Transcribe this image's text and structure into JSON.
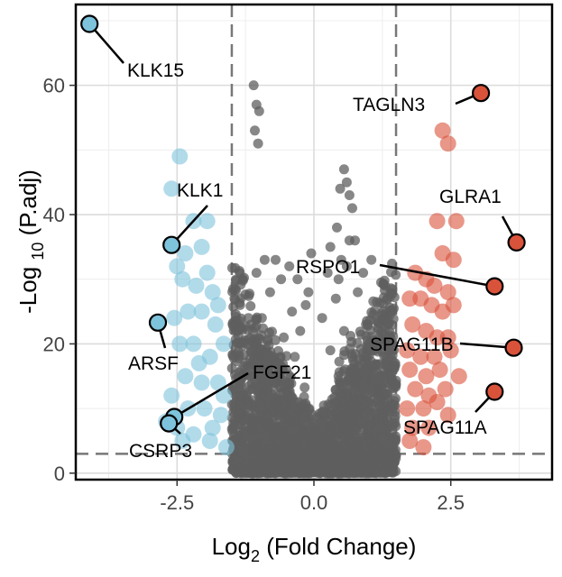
{
  "chart_data": {
    "type": "scatter",
    "xlabel": "Log2 (Fold Change)",
    "xlabel_parts": {
      "main": "Log",
      "sub": "2",
      "rest": " (Fold Change)"
    },
    "ylabel": "-Log 10 (P.adj)",
    "ylabel_parts": {
      "main": "-Log ",
      "sub": "10",
      "rest": " (P.adj)"
    },
    "xlim": [
      -4.35,
      4.35
    ],
    "ylim": [
      -1.0,
      72.5
    ],
    "xticks": [
      -2.5,
      0.0,
      2.5
    ],
    "xtick_labels": [
      "-2.5",
      "0.0",
      "2.5"
    ],
    "yticks": [
      0,
      20,
      40,
      60
    ],
    "ytick_labels": [
      "0",
      "20",
      "40",
      "60"
    ],
    "grid": true,
    "thresholds": {
      "log2fc": [
        -1.5,
        1.5
      ],
      "neg_log10_padj": 3
    },
    "colors": {
      "not_significant": "#5f5f5f",
      "down": "#7ec3dc",
      "up": "#d9523a",
      "threshold_line": "#777777"
    },
    "series": [
      {
        "type": "ns",
        "points": [
          [
            -0.9,
            2
          ],
          [
            -0.75,
            4
          ],
          [
            -0.6,
            1
          ],
          [
            -0.45,
            6
          ],
          [
            -0.3,
            3
          ],
          [
            -0.2,
            9
          ],
          [
            -0.1,
            1
          ],
          [
            0.0,
            0.5
          ],
          [
            0.1,
            2
          ],
          [
            0.2,
            5
          ],
          [
            0.35,
            3
          ],
          [
            0.5,
            8
          ],
          [
            0.65,
            2
          ],
          [
            0.8,
            4
          ],
          [
            0.95,
            1
          ],
          [
            1.1,
            3
          ],
          [
            -1.1,
            5
          ],
          [
            -1.25,
            2
          ],
          [
            1.25,
            6
          ],
          [
            1.4,
            2
          ],
          [
            -0.7,
            11
          ],
          [
            -0.5,
            14
          ],
          [
            -0.35,
            18
          ],
          [
            -0.25,
            22
          ],
          [
            -0.15,
            26
          ],
          [
            0.15,
            24
          ],
          [
            0.3,
            19
          ],
          [
            0.45,
            15
          ],
          [
            0.6,
            12
          ],
          [
            0.75,
            10
          ],
          [
            -1.0,
            9
          ],
          [
            -0.85,
            13
          ],
          [
            -0.65,
            17
          ],
          [
            -0.55,
            21
          ],
          [
            -0.4,
            25
          ],
          [
            0.4,
            27
          ],
          [
            0.55,
            22
          ],
          [
            0.7,
            18
          ],
          [
            0.85,
            14
          ],
          [
            1.0,
            11
          ],
          [
            -1.2,
            16
          ],
          [
            -1.05,
            20
          ],
          [
            -0.95,
            24
          ],
          [
            -0.8,
            28
          ],
          [
            -0.6,
            30
          ],
          [
            0.6,
            32
          ],
          [
            0.8,
            28
          ],
          [
            0.95,
            23
          ],
          [
            1.1,
            19
          ],
          [
            1.25,
            15
          ],
          [
            -1.3,
            12
          ],
          [
            -1.15,
            7
          ],
          [
            1.3,
            10
          ],
          [
            1.15,
            7
          ],
          [
            -0.3,
            30
          ],
          [
            -0.1,
            28
          ],
          [
            0.25,
            31
          ],
          [
            0.5,
            33
          ],
          [
            -0.45,
            32
          ],
          [
            0.9,
            31
          ],
          [
            -1.4,
            22
          ],
          [
            -1.35,
            26
          ],
          [
            1.4,
            25
          ],
          [
            1.35,
            21
          ],
          [
            -1.3,
            30
          ],
          [
            1.3,
            29
          ],
          [
            -0.9,
            33
          ],
          [
            0.3,
            35
          ],
          [
            0.65,
            36
          ],
          [
            -0.05,
            34
          ],
          [
            -1.05,
            31
          ],
          [
            1.05,
            33
          ],
          [
            0.75,
            36
          ],
          [
            -0.7,
            33
          ],
          [
            0.45,
            30
          ],
          [
            0.55,
            47
          ],
          [
            0.6,
            45
          ],
          [
            0.65,
            43
          ],
          [
            0.7,
            41
          ],
          [
            0.48,
            44
          ],
          [
            0.42,
            38
          ],
          [
            -1.1,
            60
          ],
          [
            -1.05,
            57
          ],
          [
            -1.0,
            56
          ],
          [
            -1.08,
            53
          ],
          [
            -1.02,
            51
          ]
        ]
      },
      {
        "type": "down",
        "points": [
          [
            -2.45,
            49
          ],
          [
            -2.6,
            44
          ],
          [
            -2.2,
            39
          ],
          [
            -1.95,
            39
          ],
          [
            -2.05,
            35
          ],
          [
            -2.35,
            34
          ],
          [
            -1.95,
            31
          ],
          [
            -2.5,
            32
          ],
          [
            -2.4,
            30
          ],
          [
            -1.85,
            28
          ],
          [
            -2.15,
            29
          ],
          [
            -1.75,
            26
          ],
          [
            -2.55,
            24
          ],
          [
            -2.3,
            25
          ],
          [
            -2.05,
            25
          ],
          [
            -1.8,
            23
          ],
          [
            -2.45,
            20
          ],
          [
            -2.2,
            20
          ],
          [
            -1.9,
            18
          ],
          [
            -1.65,
            20
          ],
          [
            -2.35,
            15
          ],
          [
            -2.05,
            14
          ],
          [
            -1.75,
            14
          ],
          [
            -2.6,
            12
          ],
          [
            -2.3,
            10
          ],
          [
            -2.0,
            10
          ],
          [
            -1.7,
            9
          ],
          [
            -2.5,
            7
          ],
          [
            -2.2,
            6
          ],
          [
            -1.9,
            5
          ],
          [
            -1.6,
            4
          ],
          [
            -2.7,
            8
          ],
          [
            -1.85,
            7
          ],
          [
            -2.1,
            17
          ],
          [
            -1.65,
            12
          ],
          [
            -2.4,
            5
          ]
        ]
      },
      {
        "type": "up",
        "points": [
          [
            2.35,
            53
          ],
          [
            2.45,
            51
          ],
          [
            2.25,
            39
          ],
          [
            2.6,
            39
          ],
          [
            2.35,
            34
          ],
          [
            2.55,
            33
          ],
          [
            1.85,
            31
          ],
          [
            2.05,
            30
          ],
          [
            2.2,
            29
          ],
          [
            2.45,
            28
          ],
          [
            1.75,
            27
          ],
          [
            1.95,
            27
          ],
          [
            2.15,
            26
          ],
          [
            2.35,
            25
          ],
          [
            2.55,
            26
          ],
          [
            1.8,
            23
          ],
          [
            2.05,
            22
          ],
          [
            2.25,
            21
          ],
          [
            2.45,
            21
          ],
          [
            1.7,
            19
          ],
          [
            1.95,
            18
          ],
          [
            2.2,
            18
          ],
          [
            2.5,
            19
          ],
          [
            1.75,
            16
          ],
          [
            2.05,
            15
          ],
          [
            2.3,
            16
          ],
          [
            2.65,
            15
          ],
          [
            1.85,
            13
          ],
          [
            2.1,
            12
          ],
          [
            2.4,
            13
          ],
          [
            1.7,
            10
          ],
          [
            2.0,
            10
          ],
          [
            2.25,
            11
          ],
          [
            1.8,
            7
          ],
          [
            2.1,
            7
          ],
          [
            2.45,
            9
          ],
          [
            1.75,
            5
          ],
          [
            2.0,
            4
          ]
        ]
      }
    ],
    "labeled_genes": [
      {
        "name": "KLK15",
        "x": -4.1,
        "y": 69.5,
        "group": "down"
      },
      {
        "name": "KLK1",
        "x": -2.6,
        "y": 35.3,
        "group": "down"
      },
      {
        "name": "ARSF",
        "x": -2.85,
        "y": 23.3,
        "group": "down"
      },
      {
        "name": "FGF21",
        "x": -2.55,
        "y": 8.7,
        "group": "down"
      },
      {
        "name": "CSRP3",
        "x": -2.65,
        "y": 7.7,
        "group": "down"
      },
      {
        "name": "TAGLN3",
        "x": 3.05,
        "y": 58.8,
        "group": "up"
      },
      {
        "name": "GLRA1",
        "x": 3.7,
        "y": 35.7,
        "group": "up"
      },
      {
        "name": "RSPO1",
        "x": 3.3,
        "y": 28.9,
        "group": "up"
      },
      {
        "name": "SPAG11B",
        "x": 3.65,
        "y": 19.4,
        "group": "up"
      },
      {
        "name": "SPAG11A",
        "x": 3.3,
        "y": 12.6,
        "group": "up"
      }
    ]
  }
}
